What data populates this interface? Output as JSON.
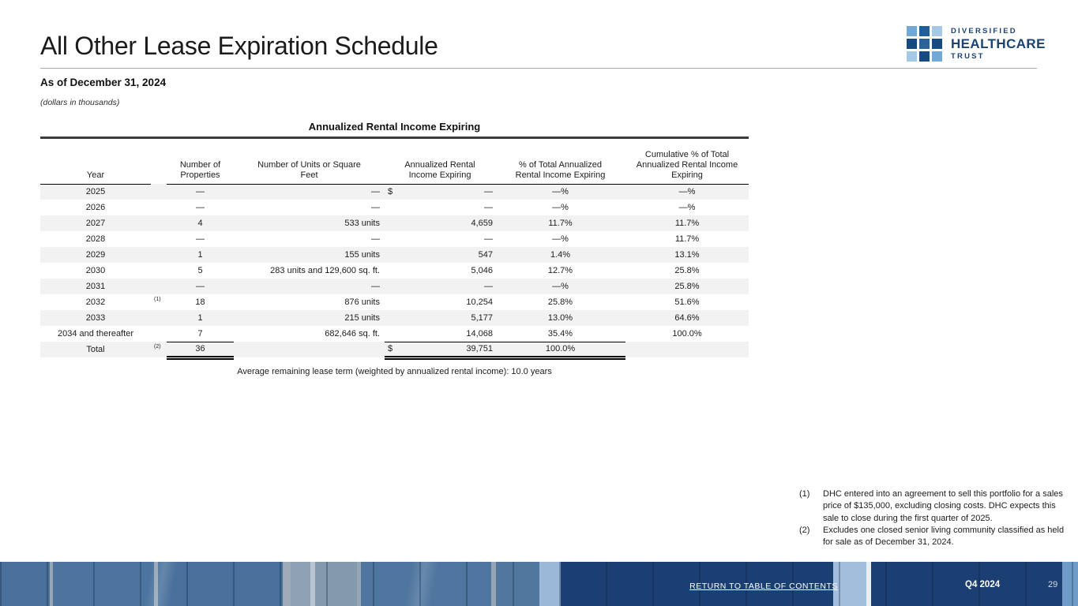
{
  "page": {
    "title": "All Other Lease Expiration Schedule",
    "as_of": "As of December 31, 2024",
    "units_note": "(dollars in thousands)"
  },
  "logo": {
    "line1": "DIVERSIFIED",
    "line2": "HEALTHCARE",
    "line3": "TRUST",
    "grid_colors": [
      "#72a9d5",
      "#1f5e97",
      "#a4c8e6",
      "#174a80",
      "#2b6399",
      "#174a80",
      "#a4c8e6",
      "#174a80",
      "#72a9d5"
    ]
  },
  "table": {
    "title": "Annualized Rental Income Expiring",
    "columns": [
      "Year",
      "Number of Properties",
      "Number of Units or Square Feet",
      "Annualized Rental Income Expiring",
      "% of Total Annualized Rental Income Expiring",
      "Cumulative % of Total Annualized Rental Income Expiring"
    ],
    "rows": [
      {
        "year": "2025",
        "marker": "",
        "properties": "—",
        "units": "—",
        "dollar": "$",
        "income": "—",
        "pct": "—%",
        "cum": "—%"
      },
      {
        "year": "2026",
        "marker": "",
        "properties": "—",
        "units": "—",
        "dollar": "",
        "income": "—",
        "pct": "—%",
        "cum": "—%"
      },
      {
        "year": "2027",
        "marker": "",
        "properties": "4",
        "units": "533 units",
        "dollar": "",
        "income": "4,659",
        "pct": "11.7%",
        "cum": "11.7%"
      },
      {
        "year": "2028",
        "marker": "",
        "properties": "—",
        "units": "—",
        "dollar": "",
        "income": "—",
        "pct": "—%",
        "cum": "11.7%"
      },
      {
        "year": "2029",
        "marker": "",
        "properties": "1",
        "units": "155 units",
        "dollar": "",
        "income": "547",
        "pct": "1.4%",
        "cum": "13.1%"
      },
      {
        "year": "2030",
        "marker": "",
        "properties": "5",
        "units": "283 units and 129,600 sq. ft.",
        "dollar": "",
        "income": "5,046",
        "pct": "12.7%",
        "cum": "25.8%"
      },
      {
        "year": "2031",
        "marker": "",
        "properties": "—",
        "units": "—",
        "dollar": "",
        "income": "—",
        "pct": "—%",
        "cum": "25.8%"
      },
      {
        "year": "2032",
        "marker": "(1)",
        "properties": "18",
        "units": "876 units",
        "dollar": "",
        "income": "10,254",
        "pct": "25.8%",
        "cum": "51.6%"
      },
      {
        "year": "2033",
        "marker": "",
        "properties": "1",
        "units": "215 units",
        "dollar": "",
        "income": "5,177",
        "pct": "13.0%",
        "cum": "64.6%"
      },
      {
        "year": "2034 and thereafter",
        "marker": "",
        "properties": "7",
        "units": "682,646 sq. ft.",
        "dollar": "",
        "income": "14,068",
        "pct": "35.4%",
        "cum": "100.0%"
      }
    ],
    "total": {
      "label": "Total",
      "marker": "(2)",
      "properties": "36",
      "units": "",
      "dollar": "$",
      "income": "39,751",
      "pct": "100.0%",
      "cum": ""
    },
    "note": "Average remaining lease term (weighted by annualized rental income): 10.0 years"
  },
  "footnotes": [
    {
      "marker": "(1)",
      "text": "DHC entered into an agreement to sell this portfolio for a sales price of $135,000, excluding closing costs. DHC expects this sale to close during the first quarter of 2025."
    },
    {
      "marker": "(2)",
      "text": "Excludes one closed senior living community classified as held for sale as of December 31, 2024."
    }
  ],
  "footer": {
    "link": "RETURN TO TABLE OF CONTENTS",
    "quarter": "Q4 2024",
    "page_number": "29"
  },
  "colors": {
    "logo_navy": "#1b4373",
    "row_stripe": "#f2f2f2",
    "footer_navy": "#1c3f73",
    "footer_steel_blue": "#4d749f",
    "footer_light_blue": "#9cb8d8",
    "rule_dark": "#3c3c3c"
  }
}
